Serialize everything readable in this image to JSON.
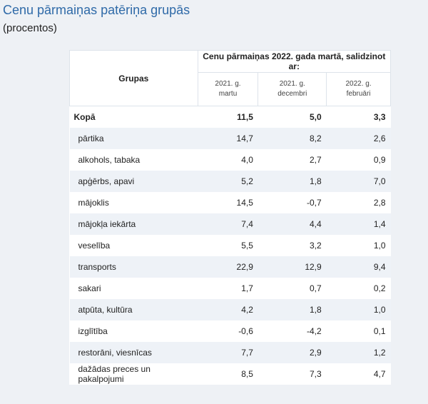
{
  "header": {
    "title": "Cenu pārmaiņas patēriņa grupās",
    "subtitle": "(procentos)"
  },
  "table": {
    "group_header": "Grupas",
    "span_header": "Cenu pārmaiņas 2022. gada martā, salidzinot ar:",
    "columns": [
      [
        "2021. g.",
        "martu"
      ],
      [
        "2021. g.",
        "decembri"
      ],
      [
        "2022. g.",
        "februāri"
      ]
    ],
    "rows": [
      [
        "Kopā",
        "11,5",
        "5,0",
        "3,3"
      ],
      [
        "pārtika",
        "14,7",
        "8,2",
        "2,6"
      ],
      [
        "alkohols, tabaka",
        "4,0",
        "2,7",
        "0,9"
      ],
      [
        "apģērbs, apavi",
        "5,2",
        "1,8",
        "7,0"
      ],
      [
        "mājoklis",
        "14,5",
        "-0,7",
        "2,8"
      ],
      [
        "mājokļa iekārta",
        "7,4",
        "4,4",
        "1,4"
      ],
      [
        "veselība",
        "5,5",
        "3,2",
        "1,0"
      ],
      [
        "transports",
        "22,9",
        "12,9",
        "9,4"
      ],
      [
        "sakari",
        "1,7",
        "0,7",
        "0,2"
      ],
      [
        "atpūta, kultūra",
        "4,2",
        "1,8",
        "1,0"
      ],
      [
        "izglītība",
        "-0,6",
        "-4,2",
        "0,1"
      ],
      [
        "restorāni, viesnīcas",
        "7,7",
        "2,9",
        "1,2"
      ],
      [
        "dažādas preces un pakalpojumi",
        "8,5",
        "7,3",
        "4,7"
      ]
    ]
  }
}
